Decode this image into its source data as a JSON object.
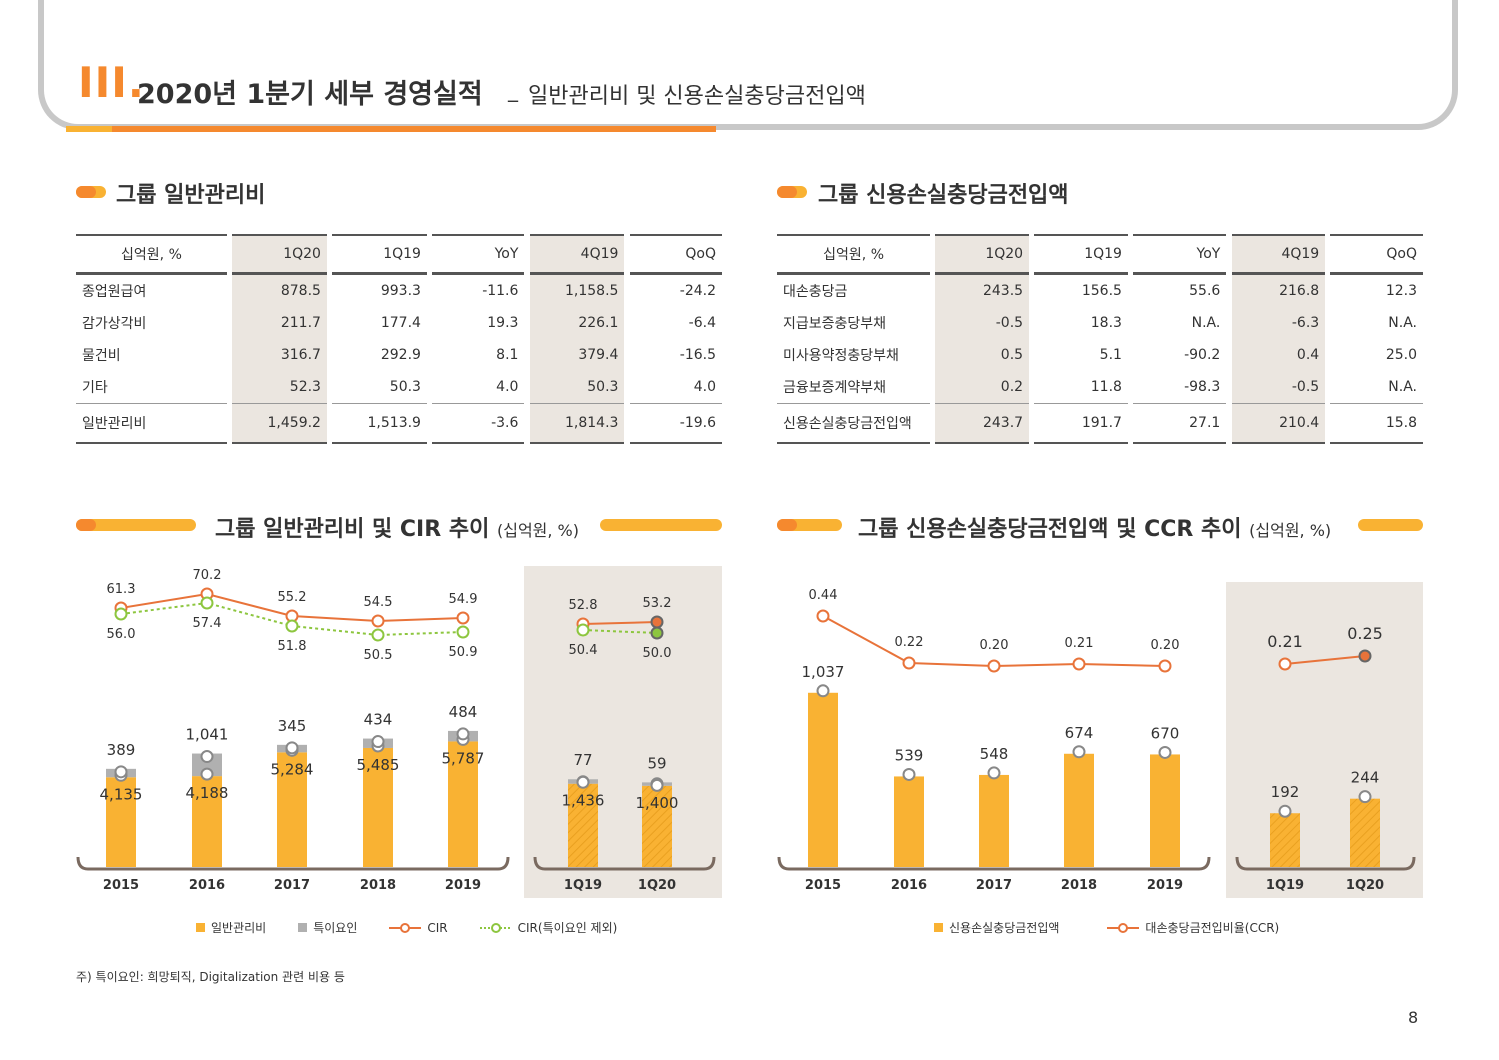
{
  "header": {
    "roman": "III.",
    "title": "2020년 1분기 세부 경영실적",
    "separator": "_",
    "subtitle": "일반관리비 및 신용손실충당금전입액"
  },
  "table1": {
    "title": "그룹 일반관리비",
    "columns": [
      "십억원, %",
      "1Q20",
      "1Q19",
      "YoY",
      "4Q19",
      "QoQ"
    ],
    "rows": [
      [
        "종업원급여",
        "878.5",
        "993.3",
        "-11.6",
        "1,158.5",
        "-24.2"
      ],
      [
        "감가상각비",
        "211.7",
        "177.4",
        "19.3",
        "226.1",
        "-6.4"
      ],
      [
        "물건비",
        "316.7",
        "292.9",
        "8.1",
        "379.4",
        "-16.5"
      ],
      [
        "기타",
        "52.3",
        "50.3",
        "4.0",
        "50.3",
        "4.0"
      ]
    ],
    "total": [
      "일반관리비",
      "1,459.2",
      "1,513.9",
      "-3.6",
      "1,814.3",
      "-19.6"
    ]
  },
  "table2": {
    "title": "그룹 신용손실충당금전입액",
    "columns": [
      "십억원, %",
      "1Q20",
      "1Q19",
      "YoY",
      "4Q19",
      "QoQ"
    ],
    "rows": [
      [
        "대손충당금",
        "243.5",
        "156.5",
        "55.6",
        "216.8",
        "12.3"
      ],
      [
        "지급보증충당부채",
        "-0.5",
        "18.3",
        "N.A.",
        "-6.3",
        "N.A."
      ],
      [
        "미사용약정충당부채",
        "0.5",
        "5.1",
        "-90.2",
        "0.4",
        "25.0"
      ],
      [
        "금융보증계약부채",
        "0.2",
        "11.8",
        "-98.3",
        "-0.5",
        "N.A."
      ]
    ],
    "total": [
      "신용손실충당금전입액",
      "243.7",
      "191.7",
      "27.1",
      "210.4",
      "15.8"
    ]
  },
  "chart_data": [
    {
      "type": "bar",
      "title": "그룹 일반관리비 및 CIR 추이",
      "unit": "(십억원, %)",
      "categories": [
        "2015",
        "2016",
        "2017",
        "2018",
        "2019",
        "1Q19",
        "1Q20"
      ],
      "series": [
        {
          "name": "일반관리비",
          "values": [
            4135,
            4188,
            5284,
            5485,
            5787,
            1436,
            1400
          ],
          "labels": [
            "4,135",
            "4,188",
            "5,284",
            "5,485",
            "5,787",
            "1,436",
            "1,400"
          ]
        },
        {
          "name": "특이요인",
          "values": [
            389,
            1041,
            345,
            434,
            484,
            77,
            59
          ],
          "labels": [
            "389",
            "1,041",
            "345",
            "434",
            "484",
            "77",
            "59"
          ]
        },
        {
          "name": "CIR",
          "values": [
            61.3,
            70.2,
            55.2,
            54.5,
            54.9,
            52.8,
            53.2
          ],
          "labels": [
            "61.3",
            "70.2",
            "55.2",
            "54.5",
            "54.9",
            "52.8",
            "53.2"
          ]
        },
        {
          "name": "CIR(특이요인 제외)",
          "values": [
            56.0,
            57.4,
            51.8,
            50.5,
            50.9,
            50.4,
            50.0
          ],
          "labels": [
            "56.0",
            "57.4",
            "51.8",
            "50.5",
            "50.9",
            "50.4",
            "50.0"
          ]
        }
      ],
      "colors": {
        "bar": "#f9b233",
        "special": "#b0b0b0",
        "cir": "#e8733a",
        "cir_ex": "#8dc63f"
      }
    },
    {
      "type": "bar",
      "title": "그룹 신용손실충당금전입액 및 CCR 추이",
      "unit": "(십억원, %)",
      "categories": [
        "2015",
        "2016",
        "2017",
        "2018",
        "2019",
        "1Q19",
        "1Q20"
      ],
      "series": [
        {
          "name": "신용손실충당금전입액",
          "values": [
            1037,
            539,
            548,
            674,
            670,
            192,
            244
          ],
          "labels": [
            "1,037",
            "539",
            "548",
            "674",
            "670",
            "192",
            "244"
          ]
        },
        {
          "name": "대손충당금전입비율(CCR)",
          "values": [
            0.44,
            0.22,
            0.2,
            0.21,
            0.2,
            0.21,
            0.25
          ],
          "labels": [
            "0.44",
            "0.22",
            "0.20",
            "0.21",
            "0.20",
            "0.21",
            "0.25"
          ]
        }
      ],
      "colors": {
        "bar": "#f9b233",
        "ccr": "#e8733a"
      }
    }
  ],
  "footnote": "주) 특이요인: 희망퇴직, Digitalization 관련 비용 등",
  "page_number": "8"
}
